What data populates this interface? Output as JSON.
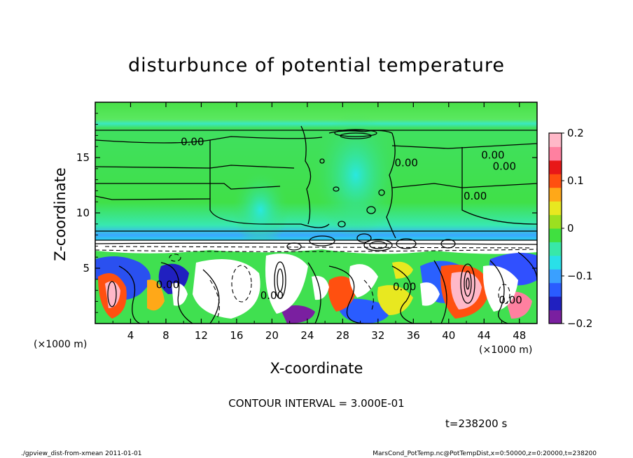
{
  "chart_data": {
    "type": "heatmap",
    "title": "disturbunce of potential temperature",
    "xlabel": "X-coordinate",
    "ylabel": "Z-coordinate",
    "x_unit_left": "(×1000 m)",
    "x_unit_right": "(×1000 m)",
    "xlim": [
      0,
      50
    ],
    "ylim": [
      0,
      20
    ],
    "xticks": [
      4,
      8,
      12,
      16,
      20,
      24,
      28,
      32,
      36,
      40,
      44,
      48
    ],
    "yticks": [
      5,
      10,
      15
    ],
    "colorbar": {
      "range": [
        -0.2,
        0.2
      ],
      "ticks": [
        {
          "value": 0.2,
          "label": "0.2"
        },
        {
          "value": 0.1,
          "label": "0.1"
        },
        {
          "value": 0,
          "label": "0"
        },
        {
          "value": -0.1,
          "label": "−0.1"
        },
        {
          "value": -0.2,
          "label": "−0.2"
        }
      ],
      "colors": [
        "#7a1fa0",
        "#2020c0",
        "#2a5cff",
        "#3aa0ff",
        "#29e0e8",
        "#38e8a8",
        "#40e040",
        "#9ce020",
        "#e8e820",
        "#ffa818",
        "#ff5010",
        "#e81818",
        "#ff80a0",
        "#ffb8c8"
      ]
    },
    "contour_labels": [
      {
        "x": 11,
        "z": 16.1,
        "text": "0.00"
      },
      {
        "x": 45,
        "z": 14.9,
        "text": "0.00"
      },
      {
        "x": 46.3,
        "z": 13.9,
        "text": "0.00"
      },
      {
        "x": 35.2,
        "z": 14.2,
        "text": "0.00"
      },
      {
        "x": 43,
        "z": 11.2,
        "text": "0.00"
      },
      {
        "x": 8.2,
        "z": 3.2,
        "text": "0.00"
      },
      {
        "x": 20,
        "z": 2.2,
        "text": "0.00"
      },
      {
        "x": 35,
        "z": 3.0,
        "text": "0.00"
      },
      {
        "x": 47,
        "z": 1.8,
        "text": "0.00"
      }
    ]
  },
  "contour_interval": "CONTOUR INTERVAL = 3.000E-01",
  "time_label": "t=238200 s",
  "footer_left": "./gpview_dist-from-xmean  2011-01-01",
  "footer_right": "MarsCond_PotTemp.nc@PotTempDist,x=0:50000,z=0:20000,t=238200"
}
